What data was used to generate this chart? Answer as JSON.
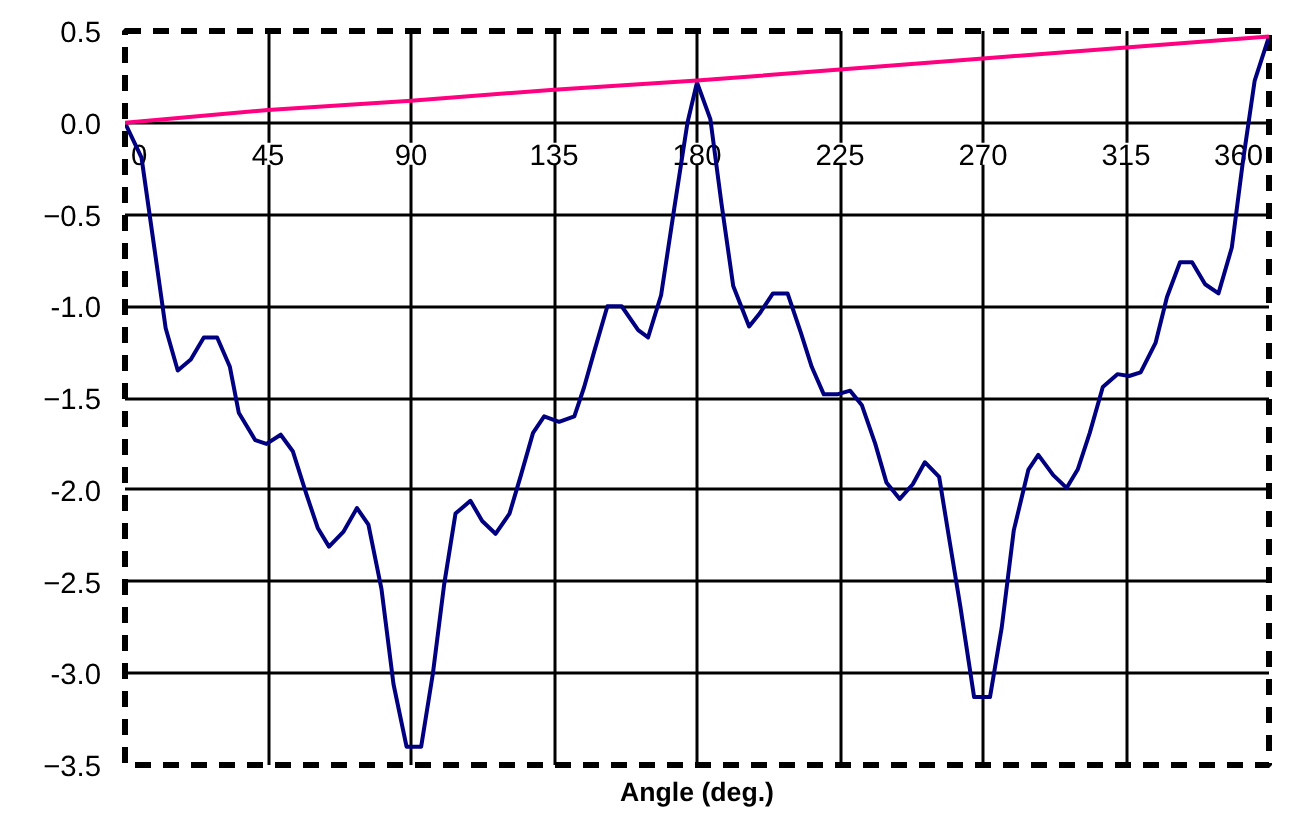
{
  "chart_data": {
    "type": "line",
    "xlabel": "Angle (deg.)",
    "xlim": [
      0,
      360
    ],
    "xticks": [
      0,
      45,
      90,
      135,
      180,
      225,
      270,
      315,
      360
    ],
    "ylim": [
      -3.5,
      0.5
    ],
    "yticks": [
      0.5,
      {
        "value": 0,
        "label": "0.0"
      },
      -0.5,
      {
        "value": -1,
        "label": "-1.0"
      },
      -1.5,
      {
        "value": -2,
        "label": "-2.0"
      },
      -2.5,
      {
        "value": -3,
        "label": "-3.0"
      },
      -3.5
    ],
    "grid": true,
    "marker": "none",
    "line_style": "solid",
    "series": [
      {
        "color": "#000080",
        "x": [
          0,
          5.2,
          9.3,
          12.8,
          16.6,
          20.7,
          24.8,
          29,
          33,
          35.8,
          41,
          44.5,
          49,
          52.8,
          57,
          60.7,
          64.2,
          68.7,
          73,
          76.6,
          80.7,
          84.5,
          88.6,
          93.2,
          96.9,
          100.4,
          104,
          108.7,
          112.4,
          116.6,
          121,
          124.6,
          128.4,
          131.9,
          136.6,
          141.4,
          144.5,
          147.6,
          151.8,
          156.3,
          161.5,
          164.6,
          168.7,
          172.9,
          177,
          180,
          184.2,
          187.7,
          191.4,
          196.4,
          199.7,
          203.9,
          208.5,
          212.6,
          216.1,
          219.9,
          224.1,
          228.2,
          231.9,
          236.1,
          239.6,
          243.8,
          247.9,
          251.7,
          256.2,
          259.3,
          262.9,
          267.2,
          272.2,
          275.9,
          279.7,
          284.3,
          287.4,
          292.1,
          296.3,
          299.8,
          303.6,
          307.7,
          312.3,
          316,
          319.6,
          324.3,
          327.9,
          332,
          335.8,
          339.9,
          344.1,
          348.3,
          351.8,
          355.5,
          360
        ],
        "values": [
          0,
          -0.19,
          -0.69,
          -1.12,
          -1.35,
          -1.29,
          -1.17,
          -1.17,
          -1.33,
          -1.58,
          -1.73,
          -1.75,
          -1.7,
          -1.79,
          -2.02,
          -2.21,
          -2.31,
          -2.23,
          -2.1,
          -2.19,
          -2.54,
          -3.06,
          -3.4,
          -3.4,
          -3.0,
          -2.52,
          -2.13,
          -2.06,
          -2.17,
          -2.24,
          -2.13,
          -1.92,
          -1.69,
          -1.6,
          -1.63,
          -1.6,
          -1.44,
          -1.25,
          -1.0,
          -1.0,
          -1.13,
          -1.17,
          -0.94,
          -0.46,
          0,
          0.22,
          0.02,
          -0.44,
          -0.89,
          -1.11,
          -1.04,
          -0.93,
          -0.93,
          -1.14,
          -1.33,
          -1.48,
          -1.48,
          -1.46,
          -1.54,
          -1.75,
          -1.96,
          -2.05,
          -1.97,
          -1.85,
          -1.93,
          -2.26,
          -2.64,
          -3.13,
          -3.13,
          -2.75,
          -2.22,
          -1.89,
          -1.81,
          -1.92,
          -1.99,
          -1.89,
          -1.69,
          -1.44,
          -1.37,
          -1.38,
          -1.36,
          -1.2,
          -0.95,
          -0.76,
          -0.76,
          -0.88,
          -0.93,
          -0.68,
          -0.21,
          0.23,
          0.47
        ]
      },
      {
        "color": "#ff0080",
        "x": [
          0,
          45,
          90,
          135,
          180,
          225,
          270,
          315,
          360
        ],
        "values": [
          0,
          0.07,
          0.12,
          0.18,
          0.23,
          0.29,
          0.35,
          0.41,
          0.47
        ]
      }
    ]
  }
}
